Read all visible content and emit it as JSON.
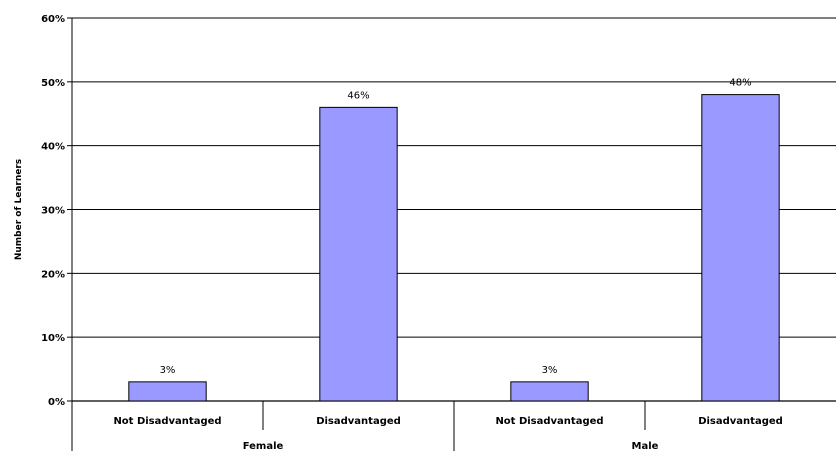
{
  "chart_data": {
    "type": "bar",
    "title": "",
    "ylabel": "Number of Learners",
    "xlabel": "",
    "ylim": [
      0,
      60
    ],
    "yticks": [
      "0%",
      "10%",
      "20%",
      "30%",
      "40%",
      "50%",
      "60%"
    ],
    "grid": true,
    "legend": "none",
    "bar_color": "#9999FF",
    "groups": [
      {
        "name": "Female",
        "categories": [
          "Not Disadvantaged",
          "Disadvantaged"
        ],
        "values": [
          3,
          46
        ],
        "labels": [
          "3%",
          "46%"
        ]
      },
      {
        "name": "Male",
        "categories": [
          "Not Disadvantaged",
          "Disadvantaged"
        ],
        "values": [
          3,
          48
        ],
        "labels": [
          "3%",
          "48%"
        ]
      }
    ]
  }
}
